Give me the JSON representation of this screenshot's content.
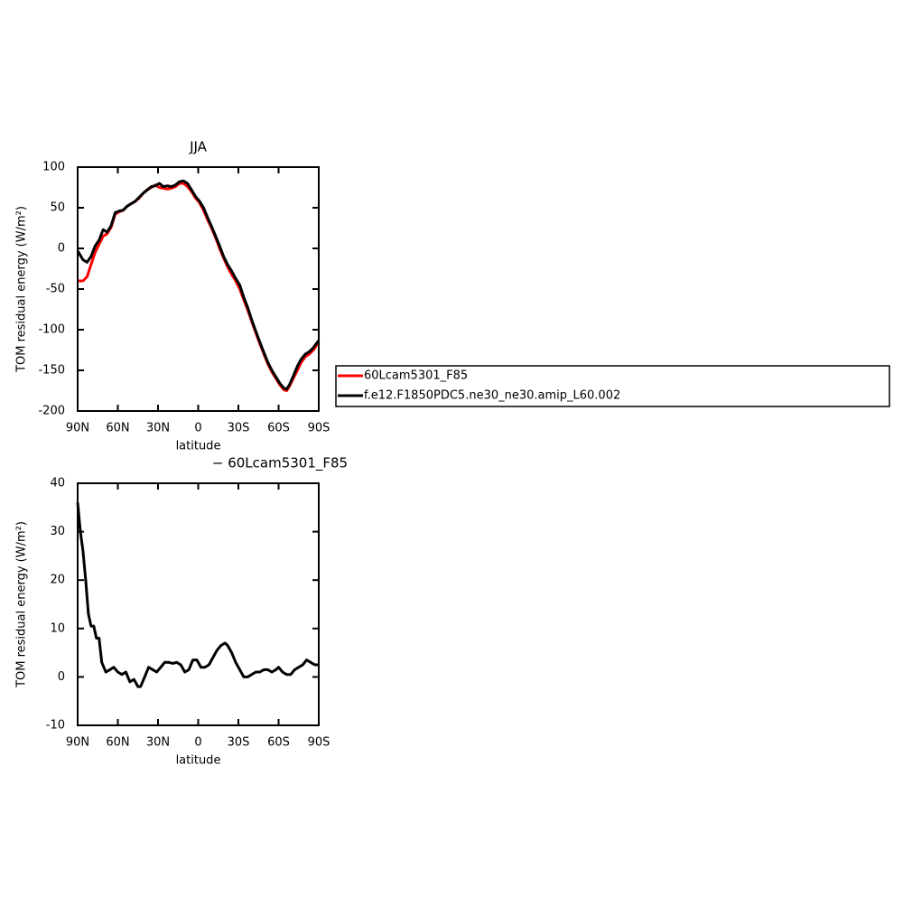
{
  "chart_data": [
    {
      "type": "line",
      "title": "JJA",
      "xlabel": "latitude",
      "ylabel": "TOM residual energy (W/m²)",
      "x": [
        90,
        86,
        83,
        80,
        77,
        74,
        71,
        68,
        65,
        62,
        59,
        56,
        53,
        50,
        47,
        44,
        41,
        38,
        35,
        32,
        29,
        26,
        23,
        20,
        17,
        14,
        11,
        8,
        5,
        2,
        -1,
        -4,
        -7,
        -10,
        -13,
        -16,
        -19,
        -22,
        -25,
        -28,
        -31,
        -34,
        -37,
        -40,
        -43,
        -46,
        -49,
        -52,
        -55,
        -58,
        -61,
        -64,
        -66,
        -68,
        -71,
        -74,
        -77,
        -80,
        -83,
        -86,
        -90
      ],
      "series": [
        {
          "name": "60Lcam5301_F85",
          "color": "#ff0000",
          "values": [
            -40,
            -40,
            -35,
            -20,
            -5,
            5,
            15,
            18,
            26,
            42,
            45,
            47,
            52,
            55,
            58,
            62,
            68,
            72,
            75,
            78,
            75,
            74,
            73,
            74,
            76,
            80,
            80,
            76,
            70,
            62,
            56,
            47,
            35,
            25,
            13,
            0,
            -12,
            -23,
            -32,
            -40,
            -50,
            -63,
            -76,
            -90,
            -104,
            -117,
            -130,
            -142,
            -152,
            -160,
            -168,
            -174,
            -175,
            -170,
            -160,
            -150,
            -140,
            -133,
            -130,
            -125,
            -115
          ]
        },
        {
          "name": "f.e12.F1850PDC5.ne30_ne30.amip_L60.002",
          "color": "#000000",
          "values": [
            -3,
            -14,
            -17,
            -10,
            3,
            10,
            23,
            20,
            28,
            44,
            46,
            47,
            52,
            55,
            58,
            63,
            68,
            72,
            76,
            77,
            80,
            76,
            77,
            76,
            78,
            82,
            83,
            80,
            72,
            64,
            58,
            50,
            38,
            27,
            15,
            3,
            -10,
            -20,
            -28,
            -37,
            -45,
            -60,
            -73,
            -88,
            -102,
            -115,
            -128,
            -140,
            -150,
            -158,
            -166,
            -172,
            -173,
            -168,
            -157,
            -145,
            -136,
            -130,
            -127,
            -122,
            -113
          ]
        }
      ],
      "xlim": [
        90,
        -90
      ],
      "xticks": [
        {
          "value": 90,
          "label": "90N"
        },
        {
          "value": 60,
          "label": "60N"
        },
        {
          "value": 30,
          "label": "30N"
        },
        0,
        {
          "value": -30,
          "label": "30S"
        },
        {
          "value": -60,
          "label": "60S"
        },
        {
          "value": -90,
          "label": "90S"
        }
      ],
      "ylim": [
        -200,
        100
      ],
      "yticks": [
        -200,
        -150,
        -100,
        -50,
        0,
        50,
        100
      ]
    },
    {
      "type": "line",
      "title": "− 60Lcam5301_F85",
      "xlabel": "latitude",
      "ylabel": "TOM residual energy (W/m²)",
      "color": "#000000",
      "x": [
        90,
        88,
        86,
        84,
        82,
        80,
        78,
        76,
        74,
        72,
        69,
        66,
        63,
        60,
        57,
        54,
        51,
        48,
        45,
        43,
        40,
        37,
        34,
        31,
        28,
        25,
        22,
        19,
        16,
        13,
        10,
        7,
        4,
        1,
        -2,
        -5,
        -8,
        -11,
        -14,
        -17,
        -20,
        -22,
        -25,
        -28,
        -31,
        -34,
        -37,
        -40,
        -43,
        -46,
        -49,
        -52,
        -55,
        -58,
        -60,
        -63,
        -66,
        -69,
        -72,
        -75,
        -78,
        -81,
        -84,
        -87,
        -90
      ],
      "values": [
        36,
        30,
        26,
        20,
        13,
        10.5,
        10.5,
        8,
        8,
        3,
        1,
        1.5,
        2,
        1,
        0.5,
        1,
        -1,
        -0.5,
        -2,
        -2,
        0,
        2,
        1.5,
        1,
        2,
        3,
        3,
        2.8,
        3,
        2.5,
        1,
        1.5,
        3.5,
        3.5,
        2,
        2,
        2.5,
        4,
        5.5,
        6.5,
        7,
        6.5,
        5,
        3,
        1.5,
        0,
        0,
        0.5,
        1,
        1,
        1.5,
        1.5,
        1,
        1.5,
        2,
        1,
        0.5,
        0.5,
        1.5,
        2,
        2.5,
        3.5,
        3,
        2.5,
        2.5
      ],
      "xlim": [
        90,
        -90
      ],
      "xticks": [
        {
          "value": 90,
          "label": "90N"
        },
        {
          "value": 60,
          "label": "60N"
        },
        {
          "value": 30,
          "label": "30N"
        },
        0,
        {
          "value": -30,
          "label": "30S"
        },
        {
          "value": -60,
          "label": "60S"
        },
        {
          "value": -90,
          "label": "90S"
        }
      ],
      "ylim": [
        -10,
        40
      ],
      "yticks": [
        -10,
        0,
        10,
        20,
        30,
        40
      ]
    }
  ]
}
